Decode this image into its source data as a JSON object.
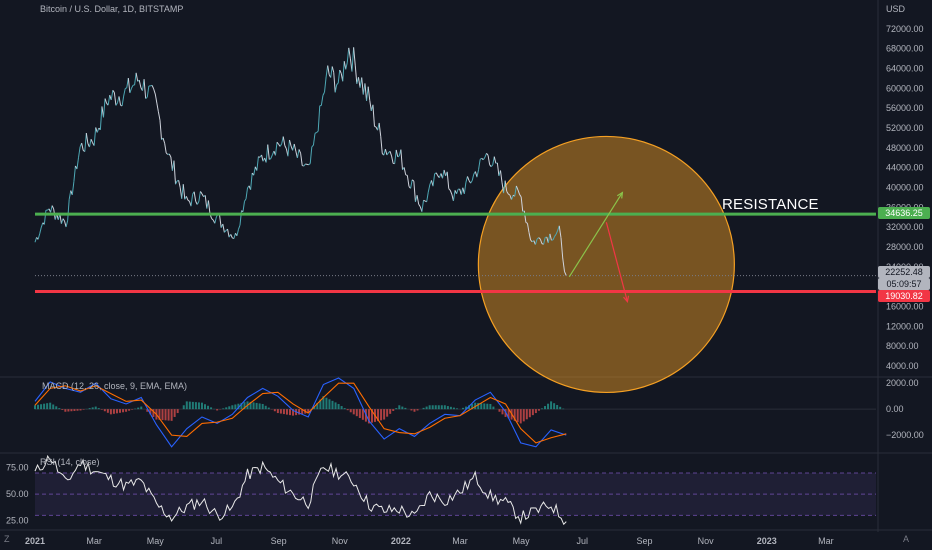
{
  "header": {
    "symbol_title": "Bitcoin / U.S. Dollar, 1D, BITSTAMP",
    "currency": "USD"
  },
  "annotations": {
    "resistance_label": "RESISTANCE",
    "resistance_price": "34636.25",
    "support_price": "19030.82",
    "last_price": "22252.48",
    "countdown": "05:09:57"
  },
  "indicators": {
    "macd_title": "MACD (12, 26, close, 9, EMA, EMA)",
    "rsi_title": "RSI (14, close)"
  },
  "footer": {
    "left_tool": "Z",
    "right_tool": "A"
  },
  "colors": {
    "background": "#131722",
    "candle": "#4ea8b5",
    "resistance_line": "#4caf50",
    "support_line": "#f23645",
    "circle_fill": "#f5a023",
    "up_arrow": "#8bc34a",
    "down_arrow": "#f23645",
    "macd_line": "#2962ff",
    "signal_line": "#ff6d00",
    "rsi_line": "#e8e8e8",
    "rsi_band": "#7e57c2"
  },
  "chart_data": [
    {
      "type": "line",
      "title": "Bitcoin / U.S. Dollar, 1D, BITSTAMP",
      "xlabel": "",
      "ylabel": "USD",
      "x_ticks": [
        "2021",
        "Mar",
        "May",
        "Jul",
        "Sep",
        "Nov",
        "2022",
        "Mar",
        "May",
        "Jul",
        "Sep",
        "Nov",
        "2023",
        "Mar"
      ],
      "y_ticks": [
        4000,
        8000,
        12000,
        16000,
        20000,
        24000,
        28000,
        32000,
        36000,
        40000,
        44000,
        48000,
        52000,
        56000,
        60000,
        64000,
        68000,
        72000
      ],
      "y_tick_labels": [
        "4000.00",
        "8000.00",
        "12000.00",
        "16000.00",
        "20000.00",
        "24000.00",
        "28000.00",
        "32000.00",
        "36000.00",
        "40000.00",
        "44000.00",
        "48000.00",
        "52000.00",
        "56000.00",
        "60000.00",
        "64000.00",
        "68000.00",
        "72000.00"
      ],
      "ylim": [
        2000,
        75000
      ],
      "series": [
        {
          "x": [
            "2021-01-01",
            "2021-01-15",
            "2021-02-01",
            "2021-02-15",
            "2021-03-01",
            "2021-03-15",
            "2021-04-01",
            "2021-04-15",
            "2021-05-01",
            "2021-05-15",
            "2021-06-01",
            "2021-06-15",
            "2021-07-01",
            "2021-07-20",
            "2021-08-01",
            "2021-08-15",
            "2021-09-01",
            "2021-09-15",
            "2021-10-01",
            "2021-10-20",
            "2021-11-01",
            "2021-11-10",
            "2021-12-01",
            "2021-12-15",
            "2022-01-01",
            "2022-01-22",
            "2022-02-10",
            "2022-02-24",
            "2022-03-10",
            "2022-03-29",
            "2022-04-15",
            "2022-05-01",
            "2022-05-12",
            "2022-05-25",
            "2022-06-08",
            "2022-06-15"
          ],
          "values": [
            29000,
            36000,
            33000,
            48000,
            50000,
            58000,
            59000,
            62000,
            57000,
            46000,
            37000,
            38500,
            34000,
            30000,
            40000,
            46000,
            49000,
            47500,
            43000,
            63000,
            61000,
            68000,
            57000,
            48000,
            46000,
            36000,
            44000,
            38000,
            41000,
            47000,
            40000,
            38000,
            29000,
            30000,
            31000,
            22252
          ]
        }
      ],
      "annotations": {
        "horizontal_lines": [
          {
            "label": "RESISTANCE",
            "value": 34636.25,
            "color": "#4caf50"
          },
          {
            "value": 19030.82,
            "color": "#f23645"
          }
        ],
        "dotted_line": 22252.48,
        "circle": {
          "x_center": "2022-07-25",
          "y_center": 24500
        },
        "arrows": [
          {
            "from": [
              "2022-06-18",
              22000
            ],
            "to": [
              "2022-08-10",
              39000
            ],
            "color": "#8bc34a"
          },
          {
            "from": [
              "2022-07-25",
              33000
            ],
            "to": [
              "2022-08-15",
              17000
            ],
            "color": "#f23645"
          }
        ]
      }
    },
    {
      "type": "line",
      "title": "MACD (12, 26, close, 9, EMA, EMA)",
      "y_ticks": [
        2000,
        0,
        -2000
      ],
      "y_tick_labels": [
        "2000.00",
        "0.00",
        "−2000.00"
      ],
      "ylim": [
        -3300,
        2400
      ],
      "series": [
        {
          "name": "MACD",
          "values": [
            600,
            2100,
            1600,
            1300,
            2000,
            800,
            400,
            900,
            -1200,
            -2900,
            -1500,
            -600,
            -1100,
            -400,
            900,
            1600,
            1000,
            -100,
            -600,
            1900,
            2400,
            1600,
            -900,
            -2300,
            -1500,
            -2100,
            -1100,
            -400,
            -500,
            700,
            1300,
            -200,
            -2600,
            -2900,
            -1600,
            -2000
          ]
        },
        {
          "name": "Signal",
          "values": [
            300,
            1600,
            1800,
            1400,
            1800,
            1200,
            600,
            700,
            -400,
            -2000,
            -2100,
            -1100,
            -1000,
            -700,
            300,
            1200,
            1300,
            400,
            -300,
            900,
            2000,
            2000,
            200,
            -1500,
            -1800,
            -1900,
            -1400,
            -700,
            -500,
            200,
            900,
            400,
            -1500,
            -2600,
            -2200,
            -1900
          ]
        },
        {
          "name": "Histogram",
          "values": [
            300,
            500,
            -200,
            -100,
            200,
            -400,
            -200,
            200,
            -800,
            -900,
            600,
            500,
            -100,
            300,
            600,
            400,
            -300,
            -500,
            -300,
            1000,
            400,
            -400,
            -1100,
            -800,
            300,
            -200,
            300,
            300,
            0,
            500,
            400,
            -600,
            -1100,
            -300,
            600,
            -100
          ]
        }
      ]
    },
    {
      "type": "line",
      "title": "RSI (14, close)",
      "y_ticks": [
        25,
        50,
        75
      ],
      "y_tick_labels": [
        "25.00",
        "50.00",
        "75.00"
      ],
      "ylim": [
        18,
        88
      ],
      "bands": [
        30,
        70
      ],
      "series": [
        {
          "name": "RSI",
          "values": [
            70,
            86,
            60,
            80,
            72,
            64,
            58,
            62,
            40,
            28,
            38,
            44,
            30,
            36,
            68,
            76,
            62,
            50,
            42,
            76,
            70,
            62,
            40,
            34,
            36,
            28,
            50,
            44,
            52,
            66,
            48,
            42,
            28,
            34,
            40,
            24
          ]
        }
      ]
    }
  ]
}
